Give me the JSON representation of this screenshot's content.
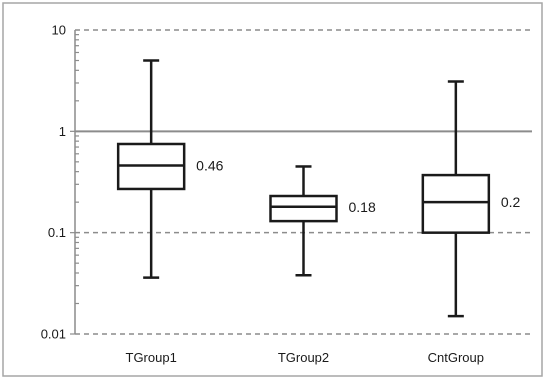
{
  "chart_data": {
    "type": "boxplot",
    "title": "",
    "xlabel": "",
    "ylabel": "",
    "y_scale": "log",
    "ylim": [
      0.01,
      10
    ],
    "y_ticks": [
      {
        "value": 0.01,
        "label": "0.01"
      },
      {
        "value": 0.1,
        "label": "0.1"
      },
      {
        "value": 1,
        "label": "1"
      },
      {
        "value": 10,
        "label": "10"
      }
    ],
    "grid": "horizontal dashed at decades, solid at 1",
    "legend": "none",
    "categories": [
      "TGroup1",
      "TGroup2",
      "CntGroup"
    ],
    "boxes": [
      {
        "category": "TGroup1",
        "whisker_low": 0.036,
        "q1": 0.27,
        "median": 0.46,
        "q3": 0.75,
        "whisker_high": 5.0,
        "label": "0.46"
      },
      {
        "category": "TGroup2",
        "whisker_low": 0.038,
        "q1": 0.13,
        "median": 0.18,
        "q3": 0.23,
        "whisker_high": 0.45,
        "label": "0.18"
      },
      {
        "category": "CntGroup",
        "whisker_low": 0.015,
        "q1": 0.1,
        "median": 0.2,
        "q3": 0.37,
        "whisker_high": 3.1,
        "label": "0.2"
      }
    ],
    "colors": {
      "box_stroke": "#1a1a1a",
      "grid": "#8c8c8c",
      "frame": "#a6a6a6"
    }
  }
}
